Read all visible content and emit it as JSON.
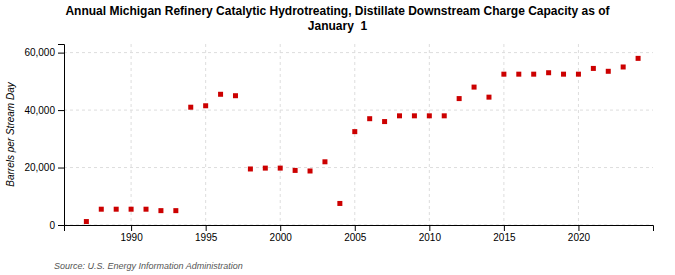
{
  "chart_data": {
    "type": "scatter",
    "title": "Annual Michigan Refinery Catalytic Hydrotreating, Distillate Downstream Charge Capacity as of\nJanuary  1",
    "y_label": "Barrels per Stream Day",
    "annotations": [
      "Source: U.S. Energy Information Administration"
    ],
    "x": [
      1987,
      1988,
      1989,
      1990,
      1991,
      1992,
      1993,
      1994,
      1995,
      1996,
      1997,
      1998,
      1999,
      2000,
      2001,
      2002,
      2003,
      2004,
      2005,
      2006,
      2007,
      2008,
      2009,
      2010,
      2011,
      2012,
      2013,
      2014,
      2015,
      2016,
      2017,
      2018,
      2019,
      2020,
      2021,
      2022,
      2023,
      2024
    ],
    "values": [
      1200,
      5500,
      5500,
      5500,
      5500,
      5000,
      5000,
      41000,
      41500,
      45500,
      45000,
      19500,
      19800,
      19800,
      19000,
      18800,
      22000,
      7500,
      32500,
      37000,
      36000,
      38000,
      38000,
      38000,
      38000,
      44000,
      48000,
      44500,
      52500,
      52500,
      52500,
      53000,
      52500,
      52500,
      54500,
      53500,
      55000,
      58000
    ],
    "color": "#cc0000",
    "marker": "square",
    "xlim": [
      1985.5,
      2025
    ],
    "ylim": [
      0,
      63000
    ],
    "xticks": [
      1990,
      1995,
      2000,
      2005,
      2010,
      2015,
      2020
    ],
    "yticks": [
      0,
      {
        "value": 20000,
        "label": "20,000"
      },
      {
        "value": 40000,
        "label": "40,000"
      },
      {
        "value": 60000,
        "label": "60,000"
      }
    ],
    "grid": true
  }
}
